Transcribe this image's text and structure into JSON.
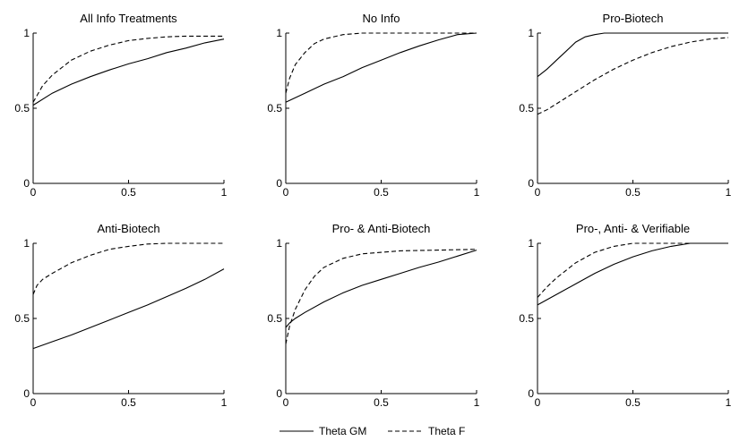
{
  "chart_data": [
    {
      "type": "line",
      "title": "All Info Treatments",
      "xlim": [
        0,
        1
      ],
      "ylim": [
        0,
        1
      ],
      "xticks": [
        "0",
        "0.5",
        "1"
      ],
      "yticks": [
        "0",
        "0.5",
        "1"
      ],
      "series": [
        {
          "name": "Theta GM",
          "style": "solid",
          "x": [
            0,
            0.1,
            0.2,
            0.3,
            0.4,
            0.5,
            0.6,
            0.7,
            0.8,
            0.9,
            1.0
          ],
          "y": [
            0.52,
            0.6,
            0.66,
            0.71,
            0.755,
            0.795,
            0.83,
            0.87,
            0.9,
            0.935,
            0.96
          ]
        },
        {
          "name": "Theta F",
          "style": "dashed",
          "x": [
            0,
            0.05,
            0.1,
            0.2,
            0.3,
            0.4,
            0.5,
            0.6,
            0.7,
            0.8,
            0.9,
            1.0
          ],
          "y": [
            0.54,
            0.65,
            0.72,
            0.82,
            0.88,
            0.92,
            0.95,
            0.965,
            0.975,
            0.98,
            0.98,
            0.98
          ]
        }
      ]
    },
    {
      "type": "line",
      "title": "No Info",
      "xlim": [
        0,
        1
      ],
      "ylim": [
        0,
        1
      ],
      "xticks": [
        "0",
        "0.5",
        "1"
      ],
      "yticks": [
        "0",
        "0.5",
        "1"
      ],
      "series": [
        {
          "name": "Theta GM",
          "style": "solid",
          "x": [
            0,
            0.1,
            0.2,
            0.3,
            0.4,
            0.5,
            0.6,
            0.7,
            0.8,
            0.9,
            1.0
          ],
          "y": [
            0.54,
            0.6,
            0.66,
            0.71,
            0.77,
            0.82,
            0.87,
            0.915,
            0.955,
            0.99,
            1.0
          ]
        },
        {
          "name": "Theta F",
          "style": "dashed",
          "x": [
            0,
            0.02,
            0.05,
            0.1,
            0.15,
            0.2,
            0.3,
            0.4,
            0.5,
            0.6,
            0.8,
            1.0
          ],
          "y": [
            0.6,
            0.7,
            0.79,
            0.87,
            0.93,
            0.96,
            0.99,
            1.0,
            1.0,
            1.0,
            1.0,
            1.0
          ]
        }
      ]
    },
    {
      "type": "line",
      "title": "Pro-Biotech",
      "xlim": [
        0,
        1
      ],
      "ylim": [
        0,
        1
      ],
      "xticks": [
        "0",
        "0.5",
        "1"
      ],
      "yticks": [
        "0",
        "0.5",
        "1"
      ],
      "series": [
        {
          "name": "Theta GM",
          "style": "solid",
          "x": [
            0,
            0.05,
            0.1,
            0.15,
            0.2,
            0.25,
            0.3,
            0.35,
            0.4,
            0.6,
            0.8,
            1.0
          ],
          "y": [
            0.71,
            0.76,
            0.82,
            0.88,
            0.94,
            0.975,
            0.99,
            1.0,
            1.0,
            1.0,
            1.0,
            1.0
          ]
        },
        {
          "name": "Theta F",
          "style": "dashed",
          "x": [
            0,
            0.05,
            0.1,
            0.2,
            0.3,
            0.4,
            0.5,
            0.6,
            0.7,
            0.8,
            0.9,
            1.0
          ],
          "y": [
            0.46,
            0.49,
            0.53,
            0.61,
            0.69,
            0.76,
            0.82,
            0.87,
            0.91,
            0.94,
            0.96,
            0.97
          ]
        }
      ]
    },
    {
      "type": "line",
      "title": "Anti-Biotech",
      "xlim": [
        0,
        1
      ],
      "ylim": [
        0,
        1
      ],
      "xticks": [
        "0",
        "0.5",
        "1"
      ],
      "yticks": [
        "0",
        "0.5",
        "1"
      ],
      "series": [
        {
          "name": "Theta GM",
          "style": "solid",
          "x": [
            0,
            0.1,
            0.2,
            0.3,
            0.4,
            0.5,
            0.6,
            0.7,
            0.8,
            0.9,
            1.0
          ],
          "y": [
            0.3,
            0.345,
            0.39,
            0.44,
            0.49,
            0.54,
            0.59,
            0.645,
            0.7,
            0.76,
            0.83
          ]
        },
        {
          "name": "Theta F",
          "style": "dashed",
          "x": [
            0,
            0.02,
            0.05,
            0.1,
            0.2,
            0.3,
            0.4,
            0.5,
            0.6,
            0.7,
            0.8,
            1.0
          ],
          "y": [
            0.66,
            0.72,
            0.76,
            0.8,
            0.87,
            0.92,
            0.96,
            0.98,
            0.995,
            1.0,
            1.0,
            1.0
          ]
        }
      ]
    },
    {
      "type": "line",
      "title": "Pro- & Anti-Biotech",
      "xlim": [
        0,
        1
      ],
      "ylim": [
        0,
        1
      ],
      "xticks": [
        "0",
        "0.5",
        "1"
      ],
      "yticks": [
        "0",
        "0.5",
        "1"
      ],
      "series": [
        {
          "name": "Theta GM",
          "style": "solid",
          "x": [
            0,
            0.02,
            0.05,
            0.1,
            0.2,
            0.3,
            0.4,
            0.5,
            0.6,
            0.7,
            0.8,
            0.9,
            1.0
          ],
          "y": [
            0.44,
            0.47,
            0.5,
            0.54,
            0.61,
            0.67,
            0.72,
            0.76,
            0.8,
            0.84,
            0.875,
            0.915,
            0.955
          ]
        },
        {
          "name": "Theta F",
          "style": "dashed",
          "x": [
            0,
            0.02,
            0.05,
            0.1,
            0.15,
            0.2,
            0.3,
            0.4,
            0.5,
            0.6,
            0.8,
            1.0
          ],
          "y": [
            0.33,
            0.45,
            0.56,
            0.69,
            0.78,
            0.84,
            0.9,
            0.93,
            0.94,
            0.95,
            0.955,
            0.96
          ]
        }
      ]
    },
    {
      "type": "line",
      "title": "Pro-, Anti- & Verifiable",
      "xlim": [
        0,
        1
      ],
      "ylim": [
        0,
        1
      ],
      "xticks": [
        "0",
        "0.5",
        "1"
      ],
      "yticks": [
        "0",
        "0.5",
        "1"
      ],
      "series": [
        {
          "name": "Theta GM",
          "style": "solid",
          "x": [
            0,
            0.1,
            0.2,
            0.3,
            0.4,
            0.5,
            0.6,
            0.7,
            0.8,
            0.9,
            1.0
          ],
          "y": [
            0.59,
            0.66,
            0.73,
            0.8,
            0.86,
            0.91,
            0.95,
            0.98,
            1.0,
            1.0,
            1.0
          ]
        },
        {
          "name": "Theta F",
          "style": "dashed",
          "x": [
            0,
            0.05,
            0.1,
            0.2,
            0.3,
            0.4,
            0.5,
            0.6,
            0.8,
            1.0
          ],
          "y": [
            0.64,
            0.71,
            0.77,
            0.87,
            0.94,
            0.98,
            1.0,
            1.0,
            1.0,
            1.0
          ]
        }
      ]
    }
  ],
  "legend": {
    "placement": "bottom-center",
    "items": [
      {
        "label": "Theta GM",
        "style": "solid"
      },
      {
        "label": "Theta F",
        "style": "dashed"
      }
    ]
  }
}
